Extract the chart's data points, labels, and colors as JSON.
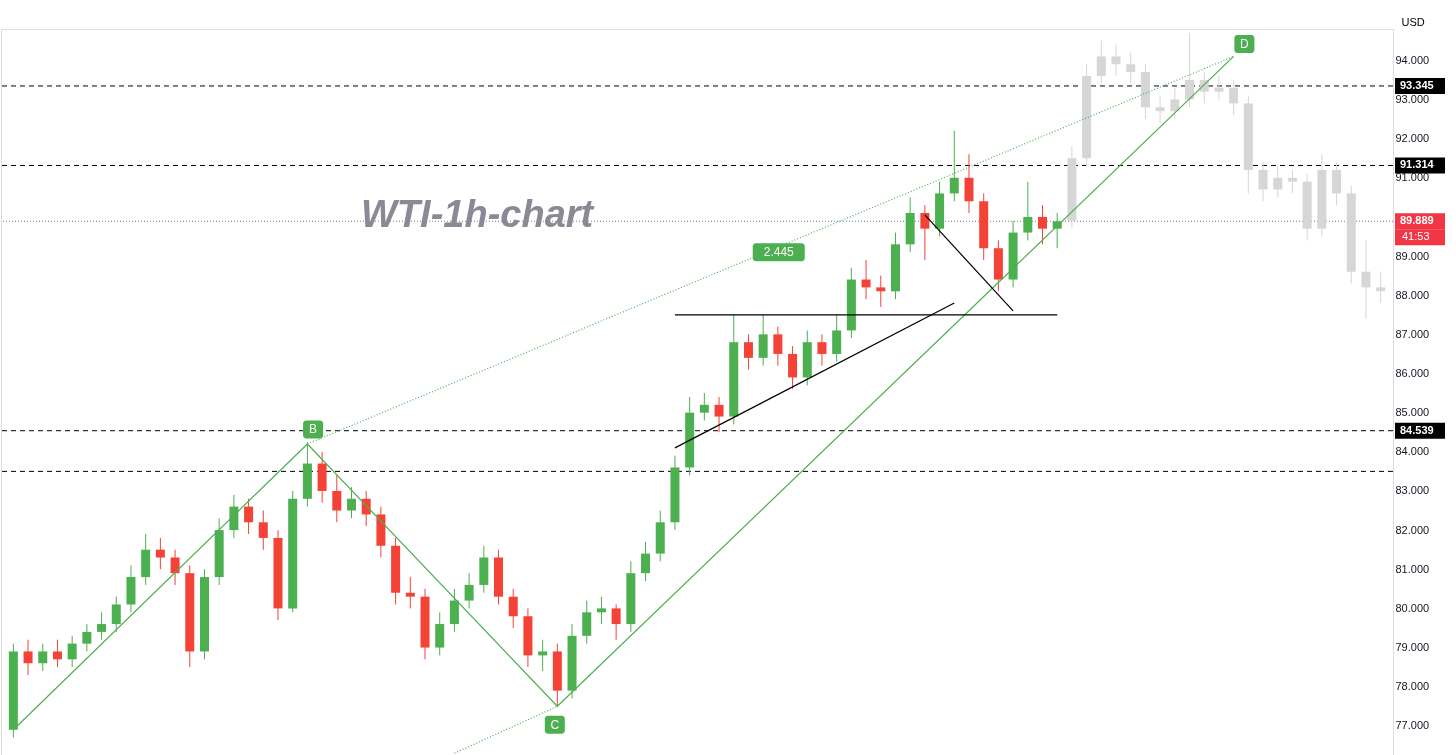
{
  "chart_data": {
    "type": "candlestick",
    "title": "WTI-1h-chart",
    "ylabel": "USD",
    "categories": [
      null,
      null,
      null,
      null,
      null,
      null,
      null,
      null,
      null,
      null,
      null,
      null,
      null,
      null,
      null,
      null,
      null,
      null,
      null,
      null,
      null,
      null,
      null,
      null,
      null,
      null,
      null,
      null,
      null,
      null,
      null,
      null,
      null,
      null,
      null,
      null,
      null,
      null,
      null,
      null,
      null,
      null,
      null,
      null,
      null,
      null,
      null,
      null,
      null,
      null,
      null,
      null,
      null,
      null,
      null,
      null,
      null,
      null,
      null,
      null,
      null,
      null,
      null,
      null,
      null,
      null,
      null,
      null,
      null,
      null,
      null,
      null,
      null,
      null,
      null,
      null,
      null,
      null,
      null,
      null,
      null,
      null,
      null,
      null,
      null,
      null,
      null,
      null,
      null,
      null,
      null,
      null,
      null,
      null
    ],
    "ohlc": [
      [
        76.9,
        79.1,
        76.7,
        78.9
      ],
      [
        78.9,
        79.2,
        78.3,
        78.6
      ],
      [
        78.6,
        79.1,
        78.4,
        78.9
      ],
      [
        78.9,
        79.2,
        78.5,
        78.7
      ],
      [
        78.7,
        79.3,
        78.5,
        79.1
      ],
      [
        79.1,
        79.6,
        78.9,
        79.4
      ],
      [
        79.4,
        79.9,
        79.2,
        79.6
      ],
      [
        79.6,
        80.3,
        79.4,
        80.1
      ],
      [
        80.1,
        81.1,
        79.9,
        80.8
      ],
      [
        80.8,
        81.9,
        80.6,
        81.5
      ],
      [
        81.5,
        81.8,
        81.0,
        81.3
      ],
      [
        81.3,
        81.5,
        80.6,
        80.9
      ],
      [
        80.9,
        81.1,
        78.5,
        78.9
      ],
      [
        78.9,
        81.0,
        78.7,
        80.8
      ],
      [
        80.8,
        82.3,
        80.6,
        82.0
      ],
      [
        82.0,
        82.9,
        81.8,
        82.6
      ],
      [
        82.6,
        82.8,
        81.9,
        82.2
      ],
      [
        82.2,
        82.5,
        81.5,
        81.8
      ],
      [
        81.8,
        82.0,
        79.7,
        80.0
      ],
      [
        80.0,
        83.0,
        79.9,
        82.8
      ],
      [
        82.8,
        84.25,
        82.6,
        83.7
      ],
      [
        83.7,
        84.0,
        82.7,
        83.0
      ],
      [
        83.0,
        83.4,
        82.2,
        82.5
      ],
      [
        82.5,
        83.1,
        82.3,
        82.8
      ],
      [
        82.8,
        83.0,
        82.1,
        82.4
      ],
      [
        82.4,
        82.6,
        81.3,
        81.6
      ],
      [
        81.6,
        81.8,
        80.1,
        80.4
      ],
      [
        80.4,
        80.8,
        80.0,
        80.3
      ],
      [
        80.3,
        80.5,
        78.7,
        79.0
      ],
      [
        79.0,
        79.9,
        78.8,
        79.6
      ],
      [
        79.6,
        80.5,
        79.4,
        80.2
      ],
      [
        80.2,
        80.9,
        80.0,
        80.6
      ],
      [
        80.6,
        81.6,
        80.4,
        81.3
      ],
      [
        81.3,
        81.5,
        80.1,
        80.3
      ],
      [
        80.3,
        80.5,
        79.5,
        79.8
      ],
      [
        79.8,
        80.0,
        78.5,
        78.8
      ],
      [
        78.8,
        79.2,
        78.4,
        78.9
      ],
      [
        78.9,
        79.1,
        77.5,
        77.9
      ],
      [
        77.9,
        79.6,
        77.7,
        79.3
      ],
      [
        79.3,
        80.2,
        79.1,
        79.9
      ],
      [
        79.9,
        80.3,
        79.6,
        80.0
      ],
      [
        80.0,
        80.1,
        79.2,
        79.6
      ],
      [
        79.6,
        81.2,
        79.4,
        80.9
      ],
      [
        80.9,
        81.7,
        80.7,
        81.4
      ],
      [
        81.4,
        82.5,
        81.2,
        82.2
      ],
      [
        82.2,
        83.9,
        82.0,
        83.6
      ],
      [
        83.6,
        85.4,
        83.4,
        85.0
      ],
      [
        85.0,
        85.5,
        84.8,
        85.2
      ],
      [
        85.2,
        85.4,
        84.5,
        84.9
      ],
      [
        84.9,
        87.5,
        84.7,
        86.8
      ],
      [
        86.8,
        87.0,
        86.1,
        86.4
      ],
      [
        86.4,
        87.5,
        86.2,
        87.0
      ],
      [
        87.0,
        87.2,
        86.2,
        86.5
      ],
      [
        86.5,
        86.7,
        85.6,
        85.9
      ],
      [
        85.9,
        87.1,
        85.7,
        86.8
      ],
      [
        86.8,
        87.0,
        86.2,
        86.5
      ],
      [
        86.5,
        87.5,
        86.3,
        87.1
      ],
      [
        87.1,
        88.7,
        86.9,
        88.4
      ],
      [
        88.4,
        88.9,
        87.9,
        88.2
      ],
      [
        88.2,
        88.5,
        87.7,
        88.1
      ],
      [
        88.1,
        89.6,
        87.9,
        89.3
      ],
      [
        89.3,
        90.5,
        89.1,
        90.1
      ],
      [
        90.1,
        90.3,
        88.9,
        89.7
      ],
      [
        89.7,
        90.9,
        89.5,
        90.6
      ],
      [
        90.6,
        92.2,
        90.4,
        91.0
      ],
      [
        91.0,
        91.6,
        90.1,
        90.4
      ],
      [
        90.4,
        90.6,
        88.9,
        89.2
      ],
      [
        89.2,
        89.4,
        88.1,
        88.4
      ],
      [
        88.4,
        89.9,
        88.2,
        89.6
      ],
      [
        89.6,
        90.9,
        89.4,
        90.0
      ],
      [
        90.0,
        90.3,
        89.3,
        89.7
      ],
      [
        89.7,
        90.1,
        89.2,
        89.889
      ],
      [
        89.9,
        91.8,
        89.7,
        91.5
      ],
      [
        91.5,
        93.9,
        91.3,
        93.6
      ],
      [
        93.6,
        94.5,
        93.4,
        94.1
      ],
      [
        94.1,
        94.4,
        93.6,
        93.9
      ],
      [
        93.9,
        94.2,
        93.4,
        93.7
      ],
      [
        93.7,
        93.9,
        92.5,
        92.8
      ],
      [
        92.8,
        93.1,
        92.4,
        92.7
      ],
      [
        92.7,
        93.3,
        92.5,
        93.0
      ],
      [
        93.0,
        94.7,
        92.8,
        93.5
      ],
      [
        93.5,
        93.7,
        92.9,
        93.2
      ],
      [
        93.2,
        93.6,
        93.0,
        93.3
      ],
      [
        93.3,
        93.5,
        92.6,
        92.9
      ],
      [
        92.9,
        93.1,
        90.6,
        91.2
      ],
      [
        91.2,
        91.4,
        90.4,
        90.7
      ],
      [
        90.7,
        91.3,
        90.5,
        91.0
      ],
      [
        91.0,
        91.2,
        90.6,
        90.9
      ],
      [
        90.9,
        91.1,
        89.4,
        89.7
      ],
      [
        89.7,
        91.6,
        89.5,
        91.2
      ],
      [
        91.2,
        91.4,
        90.3,
        90.6
      ],
      [
        90.6,
        90.8,
        88.3,
        88.6
      ],
      [
        88.6,
        89.4,
        87.4,
        88.2
      ],
      [
        88.2,
        88.6,
        87.8,
        88.1
      ]
    ],
    "colors": [
      "#4caf50",
      "#f44336",
      "#4caf50",
      "#f44336",
      "#4caf50",
      "#4caf50",
      "#4caf50",
      "#4caf50",
      "#4caf50",
      "#4caf50",
      "#f44336",
      "#f44336",
      "#f44336",
      "#4caf50",
      "#4caf50",
      "#4caf50",
      "#f44336",
      "#f44336",
      "#f44336",
      "#4caf50",
      "#4caf50",
      "#f44336",
      "#f44336",
      "#4caf50",
      "#f44336",
      "#f44336",
      "#f44336",
      "#f44336",
      "#f44336",
      "#4caf50",
      "#4caf50",
      "#4caf50",
      "#4caf50",
      "#f44336",
      "#f44336",
      "#f44336",
      "#4caf50",
      "#f44336",
      "#4caf50",
      "#4caf50",
      "#4caf50",
      "#f44336",
      "#4caf50",
      "#4caf50",
      "#4caf50",
      "#4caf50",
      "#4caf50",
      "#4caf50",
      "#f44336",
      "#4caf50",
      "#f44336",
      "#4caf50",
      "#f44336",
      "#f44336",
      "#4caf50",
      "#f44336",
      "#4caf50",
      "#4caf50",
      "#f44336",
      "#f44336",
      "#4caf50",
      "#4caf50",
      "#f44336",
      "#4caf50",
      "#4caf50",
      "#f44336",
      "#f44336",
      "#f44336",
      "#4caf50",
      "#4caf50",
      "#f44336",
      "#4caf50",
      "#d6d6d6",
      "#d6d6d6",
      "#d6d6d6",
      "#d6d6d6",
      "#d6d6d6",
      "#d6d6d6",
      "#d6d6d6",
      "#d6d6d6",
      "#d6d6d6",
      "#d6d6d6",
      "#d6d6d6",
      "#d6d6d6",
      "#d6d6d6",
      "#d6d6d6",
      "#d6d6d6",
      "#d6d6d6",
      "#d6d6d6",
      "#d6d6d6",
      "#d6d6d6",
      "#d6d6d6",
      "#d6d6d6",
      "#d6d6d6"
    ],
    "series": [
      {
        "type": "line",
        "color": "#4caf50",
        "line_style": "solid",
        "values": [
          76.9,
          null,
          null,
          null,
          null,
          null,
          null,
          null,
          null,
          null,
          null,
          null,
          null,
          null,
          null,
          null,
          null,
          null,
          null,
          null,
          84.2,
          null,
          null,
          null,
          null,
          null,
          null,
          null,
          null,
          null,
          null,
          null,
          null,
          null,
          null,
          null,
          null,
          77.5,
          null,
          null,
          null,
          null,
          null,
          null,
          null,
          null,
          null,
          null,
          null,
          null,
          null,
          null,
          null,
          null,
          null,
          null,
          null,
          null,
          null,
          null,
          null,
          null,
          null,
          null,
          null,
          null,
          null,
          null,
          null,
          null,
          null,
          null,
          null,
          null,
          null,
          null,
          null,
          null,
          null,
          null,
          null,
          null,
          null,
          94.1,
          null,
          null,
          null,
          null,
          null,
          null,
          null,
          null,
          null,
          null
        ]
      },
      {
        "type": "line",
        "color": "#4caf50",
        "line_style": "dotted",
        "values": [
          null,
          null,
          null,
          null,
          null,
          null,
          null,
          null,
          null,
          null,
          null,
          null,
          null,
          null,
          null,
          null,
          null,
          null,
          null,
          null,
          84.2,
          null,
          null,
          null,
          null,
          null,
          null,
          null,
          null,
          null,
          null,
          null,
          null,
          null,
          null,
          null,
          null,
          null,
          null,
          null,
          null,
          null,
          null,
          null,
          null,
          null,
          null,
          null,
          null,
          null,
          null,
          null,
          null,
          null,
          null,
          null,
          null,
          null,
          null,
          null,
          null,
          null,
          null,
          null,
          null,
          null,
          null,
          null,
          null,
          null,
          null,
          null,
          null,
          null,
          null,
          null,
          null,
          null,
          null,
          null,
          null,
          null,
          null,
          94.1,
          null,
          null,
          null,
          null,
          null,
          null,
          null,
          null,
          null,
          null
        ]
      },
      {
        "type": "line",
        "color": "#4caf50",
        "line_style": "dotted",
        "values": [
          null,
          null,
          null,
          null,
          null,
          null,
          null,
          null,
          null,
          null,
          null,
          null,
          null,
          null,
          null,
          null,
          null,
          null,
          null,
          null,
          null,
          null,
          null,
          null,
          null,
          null,
          null,
          null,
          null,
          null,
          76.3,
          null,
          null,
          null,
          null,
          null,
          null,
          77.5,
          null,
          null,
          null,
          null,
          null,
          null,
          null,
          null,
          null,
          null,
          null,
          null,
          null,
          null,
          null,
          null,
          null,
          null,
          null,
          null,
          null,
          null,
          null,
          null,
          null,
          null,
          null,
          null,
          null,
          null,
          null,
          null,
          null,
          null,
          null,
          null,
          null,
          null,
          null,
          null,
          null,
          null,
          null,
          null,
          null,
          null,
          null,
          null,
          null,
          null,
          null,
          null,
          null,
          null,
          null,
          null
        ]
      },
      {
        "type": "line",
        "color": "#000000",
        "line_style": "solid",
        "values": [
          null,
          null,
          null,
          null,
          null,
          null,
          null,
          null,
          null,
          null,
          null,
          null,
          null,
          null,
          null,
          null,
          null,
          null,
          null,
          null,
          null,
          null,
          null,
          null,
          null,
          null,
          null,
          null,
          null,
          null,
          null,
          null,
          null,
          null,
          null,
          null,
          null,
          null,
          null,
          null,
          null,
          null,
          null,
          null,
          null,
          87.5,
          null,
          null,
          null,
          null,
          null,
          null,
          null,
          null,
          null,
          null,
          null,
          null,
          null,
          null,
          null,
          null,
          null,
          null,
          null,
          null,
          null,
          null,
          null,
          null,
          null,
          87.5,
          null,
          null,
          null,
          null,
          null,
          null,
          null,
          null,
          null,
          null,
          null,
          null,
          null,
          null,
          null,
          null,
          null,
          null,
          null,
          null,
          null,
          null
        ]
      },
      {
        "type": "line",
        "color": "#000000",
        "line_style": "solid",
        "values": [
          null,
          null,
          null,
          null,
          null,
          null,
          null,
          null,
          null,
          null,
          null,
          null,
          null,
          null,
          null,
          null,
          null,
          null,
          null,
          null,
          null,
          null,
          null,
          null,
          null,
          null,
          null,
          null,
          null,
          null,
          null,
          null,
          null,
          null,
          null,
          null,
          null,
          null,
          null,
          null,
          null,
          null,
          null,
          null,
          null,
          84.1,
          null,
          null,
          null,
          null,
          null,
          null,
          null,
          null,
          null,
          null,
          null,
          null,
          null,
          null,
          null,
          null,
          null,
          null,
          87.8,
          null,
          null,
          null,
          null,
          null,
          null,
          null,
          null,
          null,
          null,
          null,
          null,
          null,
          null,
          null,
          null,
          null,
          null,
          null,
          null,
          null,
          null,
          null,
          null,
          null,
          null,
          null,
          null,
          null
        ]
      },
      {
        "type": "line",
        "color": "#000000",
        "line_style": "solid",
        "values": [
          null,
          null,
          null,
          null,
          null,
          null,
          null,
          null,
          null,
          null,
          null,
          null,
          null,
          null,
          null,
          null,
          null,
          null,
          null,
          null,
          null,
          null,
          null,
          null,
          null,
          null,
          null,
          null,
          null,
          null,
          null,
          null,
          null,
          null,
          null,
          null,
          null,
          null,
          null,
          null,
          null,
          null,
          null,
          null,
          null,
          null,
          null,
          null,
          null,
          null,
          null,
          null,
          null,
          null,
          null,
          null,
          null,
          null,
          null,
          null,
          null,
          null,
          90.05,
          null,
          null,
          null,
          null,
          null,
          87.6,
          null,
          null,
          null,
          null,
          null,
          null,
          null,
          null,
          null,
          null,
          null,
          null,
          null,
          null,
          null,
          null,
          null,
          null,
          null,
          null,
          null,
          null,
          null,
          null,
          null
        ]
      }
    ],
    "ylim": [
      76.0,
      94.8
    ],
    "yticks": [
      {
        "value": 77,
        "label": "77.000"
      },
      {
        "value": 78,
        "label": "78.000"
      },
      {
        "value": 79,
        "label": "79.000"
      },
      {
        "value": 80,
        "label": "80.000"
      },
      {
        "value": 81,
        "label": "81.000"
      },
      {
        "value": 82,
        "label": "82.000"
      },
      {
        "value": 83,
        "label": "83.000"
      },
      {
        "value": 84,
        "label": "84.000"
      },
      {
        "value": 85,
        "label": "85.000"
      },
      {
        "value": 86,
        "label": "86.000"
      },
      {
        "value": 87,
        "label": "87.000"
      },
      {
        "value": 88,
        "label": "88.000"
      },
      {
        "value": 89,
        "label": "89.000"
      },
      {
        "value": 91,
        "label": "91.000"
      },
      {
        "value": 92,
        "label": "92.000"
      },
      {
        "value": 93,
        "label": "93.000"
      },
      {
        "value": 94,
        "label": "94.000"
      }
    ],
    "tick_labels": "y",
    "grid": false,
    "ref_lines": [
      {
        "axis": "y",
        "value": 93.345,
        "label": "93.345",
        "color": "#000000",
        "line_style": "dashed"
      },
      {
        "axis": "y",
        "value": 91.314,
        "label": "91.314",
        "color": "#000000",
        "line_style": "dashed"
      },
      {
        "axis": "y",
        "value": 84.539,
        "label": "84.539",
        "color": "#000000",
        "line_style": "dashed"
      },
      {
        "axis": "y",
        "value": 83.5,
        "label": null,
        "color": "#000000",
        "line_style": "dashed"
      },
      {
        "axis": "y",
        "value": 89.889,
        "label": "89.889",
        "color": "#787b86",
        "line_style": "dotted"
      }
    ],
    "annotations": [
      {
        "text": "B",
        "y": 84.57
      },
      {
        "text": "C",
        "y": 77.03
      },
      {
        "text": "D",
        "y": 94.42
      },
      {
        "text": "2.445",
        "y": 89.1
      },
      "41:53"
    ]
  }
}
